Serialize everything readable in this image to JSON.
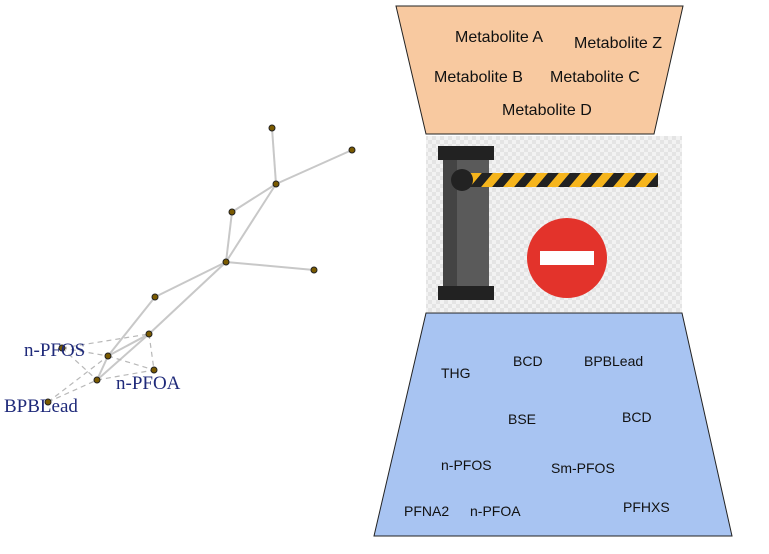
{
  "network": {
    "labels": [
      "n-PFOS",
      "n-PFOA",
      "BPBLead"
    ]
  },
  "top_panel": {
    "color": "#f8c9a0",
    "metabolites": [
      "Metabolite A",
      "Metabolite Z",
      "Metabolite B",
      "Metabolite C",
      "Metabolite D"
    ]
  },
  "barrier": {
    "bar_colors": [
      "#f6b51d",
      "#222222"
    ],
    "stop_color": "#e3332b"
  },
  "bottom_panel": {
    "color": "#a8c4f2",
    "chemicals": [
      "THG",
      "BCD",
      "BPBLead",
      "BSE",
      "BCD",
      "n-PFOS",
      "Sm-PFOS",
      "PFNA2",
      "n-PFOA",
      "PFHXS"
    ]
  }
}
